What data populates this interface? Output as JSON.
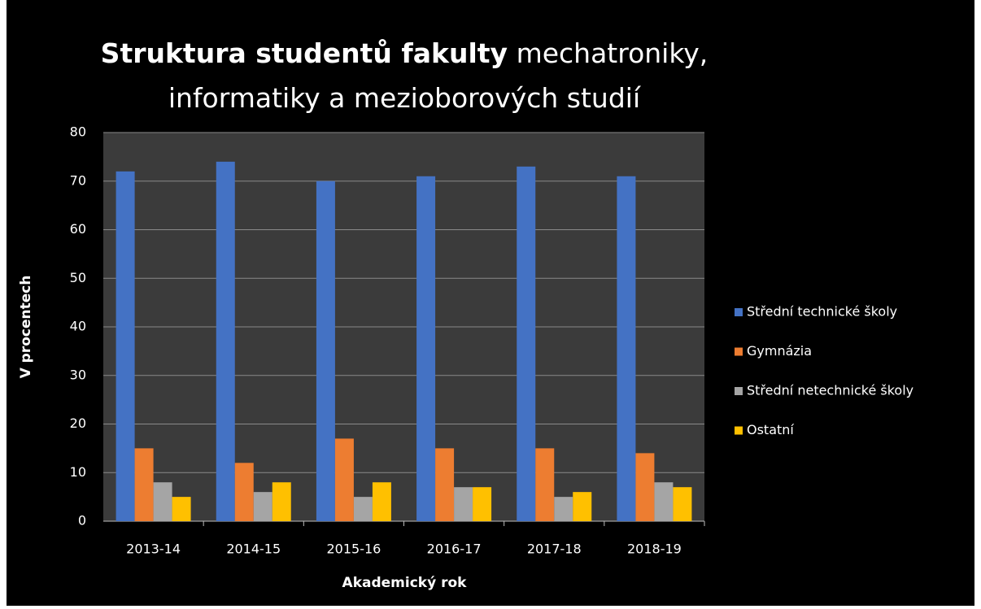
{
  "chart_data": {
    "type": "bar",
    "title": [
      {
        "text": "Struktura studentů fakulty",
        "bold": true
      },
      {
        "text": "mechatroniky,",
        "bold": false
      },
      {
        "text": "informatiky a mezioborových studií",
        "bold": false
      }
    ],
    "xlabel": "Akademický rok",
    "ylabel": "V procentech",
    "categories": [
      "2013-14",
      "2014-15",
      "2015-16",
      "2016-17",
      "2017-18",
      "2018-19"
    ],
    "series": [
      {
        "name": "Střední technické školy",
        "color": "#4472c4",
        "values": [
          72,
          74,
          70,
          71,
          73,
          71
        ]
      },
      {
        "name": "Gymnázia",
        "color": "#ed7d31",
        "values": [
          15,
          12,
          17,
          15,
          15,
          14
        ]
      },
      {
        "name": "Střední netechnické školy",
        "color": "#a5a5a5",
        "values": [
          8,
          6,
          5,
          7,
          5,
          8
        ]
      },
      {
        "name": "Ostatní",
        "color": "#ffc000",
        "values": [
          5,
          8,
          8,
          7,
          6,
          7
        ]
      }
    ],
    "ylim": [
      0,
      80
    ],
    "yticks": [
      0,
      10,
      20,
      30,
      40,
      50,
      60,
      70,
      80
    ],
    "grid": true,
    "legend": "right"
  }
}
